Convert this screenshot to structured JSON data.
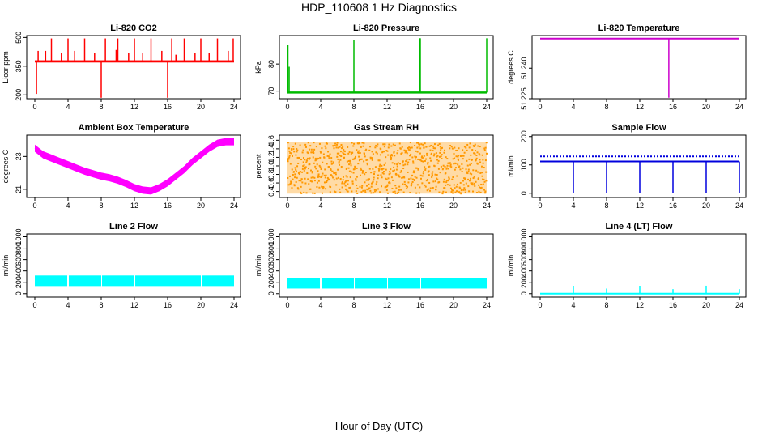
{
  "title": "HDP_110608  1 Hz Diagnostics",
  "xlabel": "Hour of Day (UTC)",
  "chart_data": [
    {
      "type": "line",
      "title": "Li-820 CO2",
      "ylabel": "Licor ppm",
      "color": "#ff0000",
      "xlim": [
        0,
        24
      ],
      "ylim": [
        180,
        510
      ],
      "xticks": [
        "0",
        "4",
        "8",
        "12",
        "16",
        "20",
        "24"
      ],
      "yticks": [
        "200",
        "350",
        "500"
      ],
      "baseline": 375,
      "band": [
        368,
        382
      ],
      "spikes": [
        {
          "x": 0.2,
          "to": 205
        },
        {
          "x": 0.4,
          "to": 430
        },
        {
          "x": 1.3,
          "to": 430
        },
        {
          "x": 2.0,
          "to": 495
        },
        {
          "x": 3.2,
          "to": 420
        },
        {
          "x": 4.0,
          "to": 495
        },
        {
          "x": 4.8,
          "to": 430
        },
        {
          "x": 6.0,
          "to": 495
        },
        {
          "x": 7.2,
          "to": 420
        },
        {
          "x": 8.0,
          "to": 185
        },
        {
          "x": 8.5,
          "to": 495
        },
        {
          "x": 9.8,
          "to": 435
        },
        {
          "x": 10.0,
          "to": 495
        },
        {
          "x": 11.3,
          "to": 420
        },
        {
          "x": 12.0,
          "to": 495
        },
        {
          "x": 13.0,
          "to": 420
        },
        {
          "x": 14.0,
          "to": 495
        },
        {
          "x": 15.3,
          "to": 430
        },
        {
          "x": 16.0,
          "to": 185
        },
        {
          "x": 16.5,
          "to": 495
        },
        {
          "x": 17.0,
          "to": 410
        },
        {
          "x": 18.0,
          "to": 495
        },
        {
          "x": 19.3,
          "to": 420
        },
        {
          "x": 20.0,
          "to": 495
        },
        {
          "x": 21.0,
          "to": 420
        },
        {
          "x": 22.0,
          "to": 495
        },
        {
          "x": 23.3,
          "to": 430
        },
        {
          "x": 23.9,
          "to": 495
        }
      ]
    },
    {
      "type": "line",
      "title": "Li-820 Pressure",
      "ylabel": "kPa",
      "color": "#00bb00",
      "xlim": [
        0,
        24
      ],
      "ylim": [
        67.2,
        90.5
      ],
      "xticks": [
        "0",
        "4",
        "8",
        "12",
        "16",
        "20",
        "24"
      ],
      "yticks": [
        "70",
        "80"
      ],
      "baseline": 69.5,
      "band": [
        69.0,
        70.0
      ],
      "spikes": [
        {
          "x": 0.05,
          "to": 87
        },
        {
          "x": 0.2,
          "to": 79
        },
        {
          "x": 8.0,
          "to": 89
        },
        {
          "x": 15.95,
          "to": 89.5
        },
        {
          "x": 16.0,
          "to": 89.5
        },
        {
          "x": 24.0,
          "to": 89.5
        }
      ]
    },
    {
      "type": "line",
      "title": "Li-820 Temperature",
      "ylabel": "degrees C",
      "color": "#cc00cc",
      "xlim": [
        0,
        24
      ],
      "ylim": [
        51.225,
        51.256
      ],
      "xticks": [
        "0",
        "4",
        "8",
        "12",
        "16",
        "20",
        "24"
      ],
      "yticks": [
        "51.225",
        "51.240"
      ],
      "baseline": 51.2545,
      "spikes": [
        {
          "x": 15.5,
          "to": 51.2255
        }
      ]
    },
    {
      "type": "line",
      "title": "Ambient Box Temperature",
      "ylabel": "degrees C",
      "color": "#ff00ff",
      "xlim": [
        0,
        24
      ],
      "ylim": [
        20.5,
        24.3
      ],
      "xticks": [
        "0",
        "4",
        "8",
        "12",
        "16",
        "20",
        "24"
      ],
      "yticks": [
        "21",
        "23"
      ],
      "x": [
        0,
        1,
        2,
        3,
        4,
        5,
        6,
        7,
        8,
        9,
        10,
        11,
        12,
        13,
        14,
        15,
        16,
        17,
        18,
        19,
        20,
        21,
        22,
        23,
        24
      ],
      "y": [
        23.5,
        23.1,
        22.9,
        22.7,
        22.5,
        22.3,
        22.1,
        21.95,
        21.8,
        21.7,
        21.55,
        21.35,
        21.1,
        20.95,
        20.9,
        21.1,
        21.4,
        21.8,
        22.2,
        22.7,
        23.1,
        23.5,
        23.8,
        23.9,
        23.9
      ],
      "band_half": 0.22
    },
    {
      "type": "scatter",
      "title": "Gas Stream RH",
      "ylabel": "percent",
      "color": "#ff9900",
      "xlim": [
        0,
        24
      ],
      "ylim": [
        0.26,
        1.72
      ],
      "xticks": [
        "0",
        "4",
        "8",
        "12",
        "16",
        "20",
        "24"
      ],
      "yticks": [
        "0.4",
        "0.6",
        "0.8",
        "1.0",
        "1.2",
        "1.4",
        "1.6"
      ],
      "range": [
        0.35,
        1.55
      ]
    },
    {
      "type": "line",
      "title": "Sample Flow",
      "ylabel": "ml/min",
      "color": "#0000dd",
      "xlim": [
        0,
        24
      ],
      "ylim": [
        -15,
        205
      ],
      "xticks": [
        "0",
        "4",
        "8",
        "12",
        "16",
        "20",
        "24"
      ],
      "yticks": [
        "0",
        "100",
        "200"
      ],
      "baseline": 112,
      "upper": 130,
      "spikes": [
        {
          "x": 4.0,
          "to": 0
        },
        {
          "x": 8.0,
          "to": 0
        },
        {
          "x": 12.0,
          "to": 0
        },
        {
          "x": 16.0,
          "to": 0
        },
        {
          "x": 20.0,
          "to": 0
        },
        {
          "x": 24.0,
          "to": 0
        }
      ]
    },
    {
      "type": "area",
      "title": "Line 2 Flow",
      "ylabel": "ml/min",
      "color": "#00ffff",
      "xlim": [
        0,
        24
      ],
      "ylim": [
        -60,
        1050
      ],
      "xticks": [
        "0",
        "4",
        "8",
        "12",
        "16",
        "20",
        "24"
      ],
      "yticks": [
        "0",
        "200",
        "400",
        "600",
        "800",
        "1000"
      ],
      "band": [
        120,
        320
      ],
      "gaps": [
        4,
        8,
        12,
        16,
        20
      ]
    },
    {
      "type": "area",
      "title": "Line 3 Flow",
      "ylabel": "ml/min",
      "color": "#00ffff",
      "xlim": [
        0,
        24
      ],
      "ylim": [
        -60,
        1050
      ],
      "xticks": [
        "0",
        "4",
        "8",
        "12",
        "16",
        "20",
        "24"
      ],
      "yticks": [
        "0",
        "200",
        "400",
        "600",
        "800",
        "1000"
      ],
      "band": [
        90,
        280
      ],
      "gaps": [
        4,
        8,
        12,
        16,
        20
      ]
    },
    {
      "type": "line",
      "title": "Line 4 (LT) Flow",
      "ylabel": "ml/min",
      "color": "#00ffff",
      "xlim": [
        0,
        24
      ],
      "ylim": [
        -60,
        1050
      ],
      "xticks": [
        "0",
        "4",
        "8",
        "12",
        "16",
        "20",
        "24"
      ],
      "yticks": [
        "0",
        "200",
        "400",
        "600",
        "800",
        "1000"
      ],
      "baseline": 0,
      "spikes": [
        {
          "x": 4.0,
          "to": 130
        },
        {
          "x": 8.0,
          "to": 90
        },
        {
          "x": 12.0,
          "to": 130
        },
        {
          "x": 16.0,
          "to": 80
        },
        {
          "x": 20.0,
          "to": 140
        },
        {
          "x": 24.0,
          "to": 80
        }
      ]
    }
  ]
}
